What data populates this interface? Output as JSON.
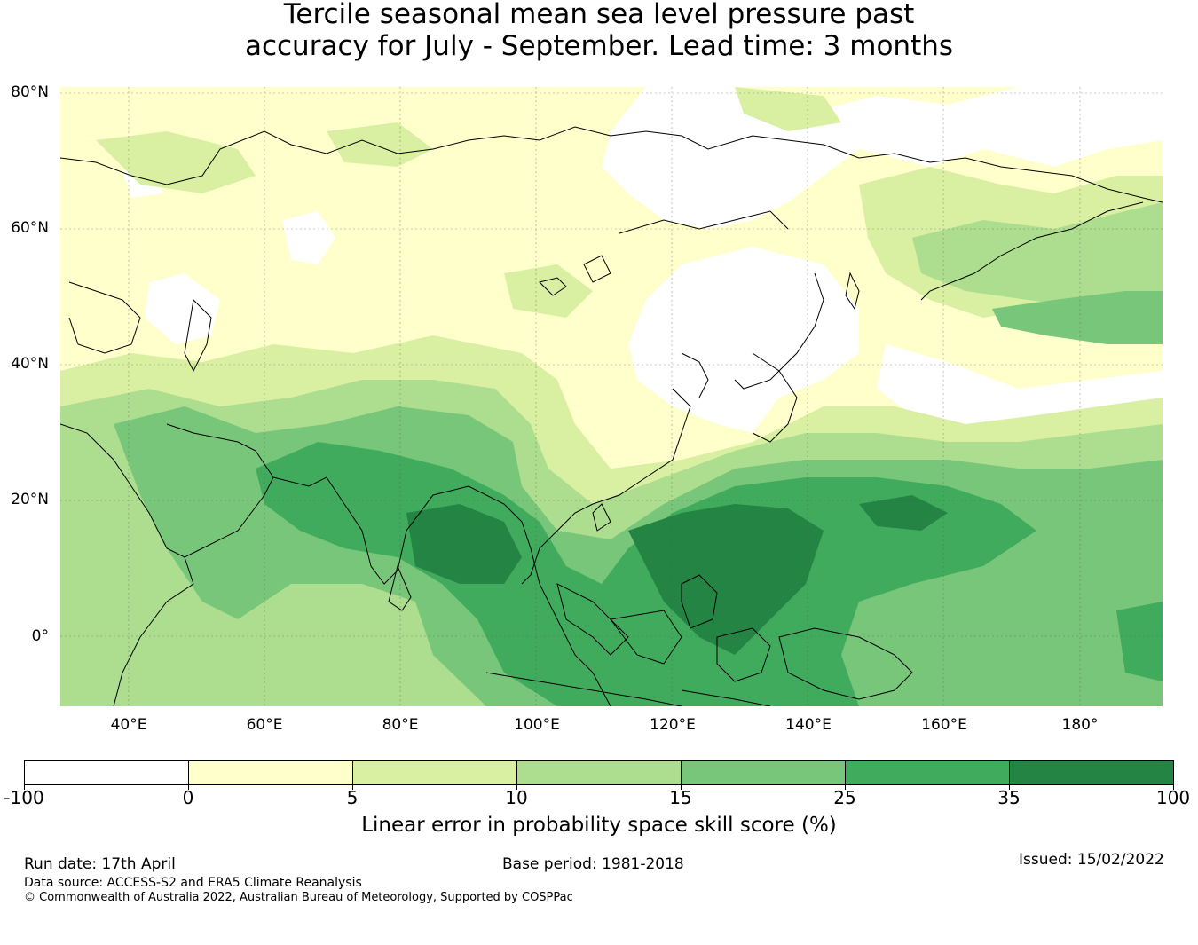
{
  "title": {
    "line1": "Tercile seasonal mean sea level pressure past",
    "line2": "accuracy for July - September. Lead time: 3 months"
  },
  "map": {
    "lat_labels": [
      "80°N",
      "60°N",
      "40°N",
      "20°N",
      "0°"
    ],
    "lon_labels": [
      "40°E",
      "60°E",
      "80°E",
      "100°E",
      "120°E",
      "140°E",
      "160°E",
      "180°"
    ],
    "background_color": "#ffffcc"
  },
  "colorbar": {
    "ticks": [
      "-100",
      "0",
      "5",
      "10",
      "15",
      "25",
      "35",
      "100"
    ],
    "colors": [
      "#ffffff",
      "#ffffcc",
      "#d9f0a3",
      "#addd8e",
      "#78c679",
      "#41ab5d",
      "#238443"
    ],
    "label": "Linear error in probability space skill score (%)"
  },
  "footer": {
    "run_date": "Run date: 17th April",
    "base_period": "Base period: 1981-2018",
    "issued": "Issued: 15/02/2022",
    "data_source": "Data source: ACCESS-S2 and ERA5 Climate Reanalysis",
    "copyright": "© Commonwealth of Australia 2022, Australian Bureau of Meteorology, Supported by COSPPac"
  }
}
